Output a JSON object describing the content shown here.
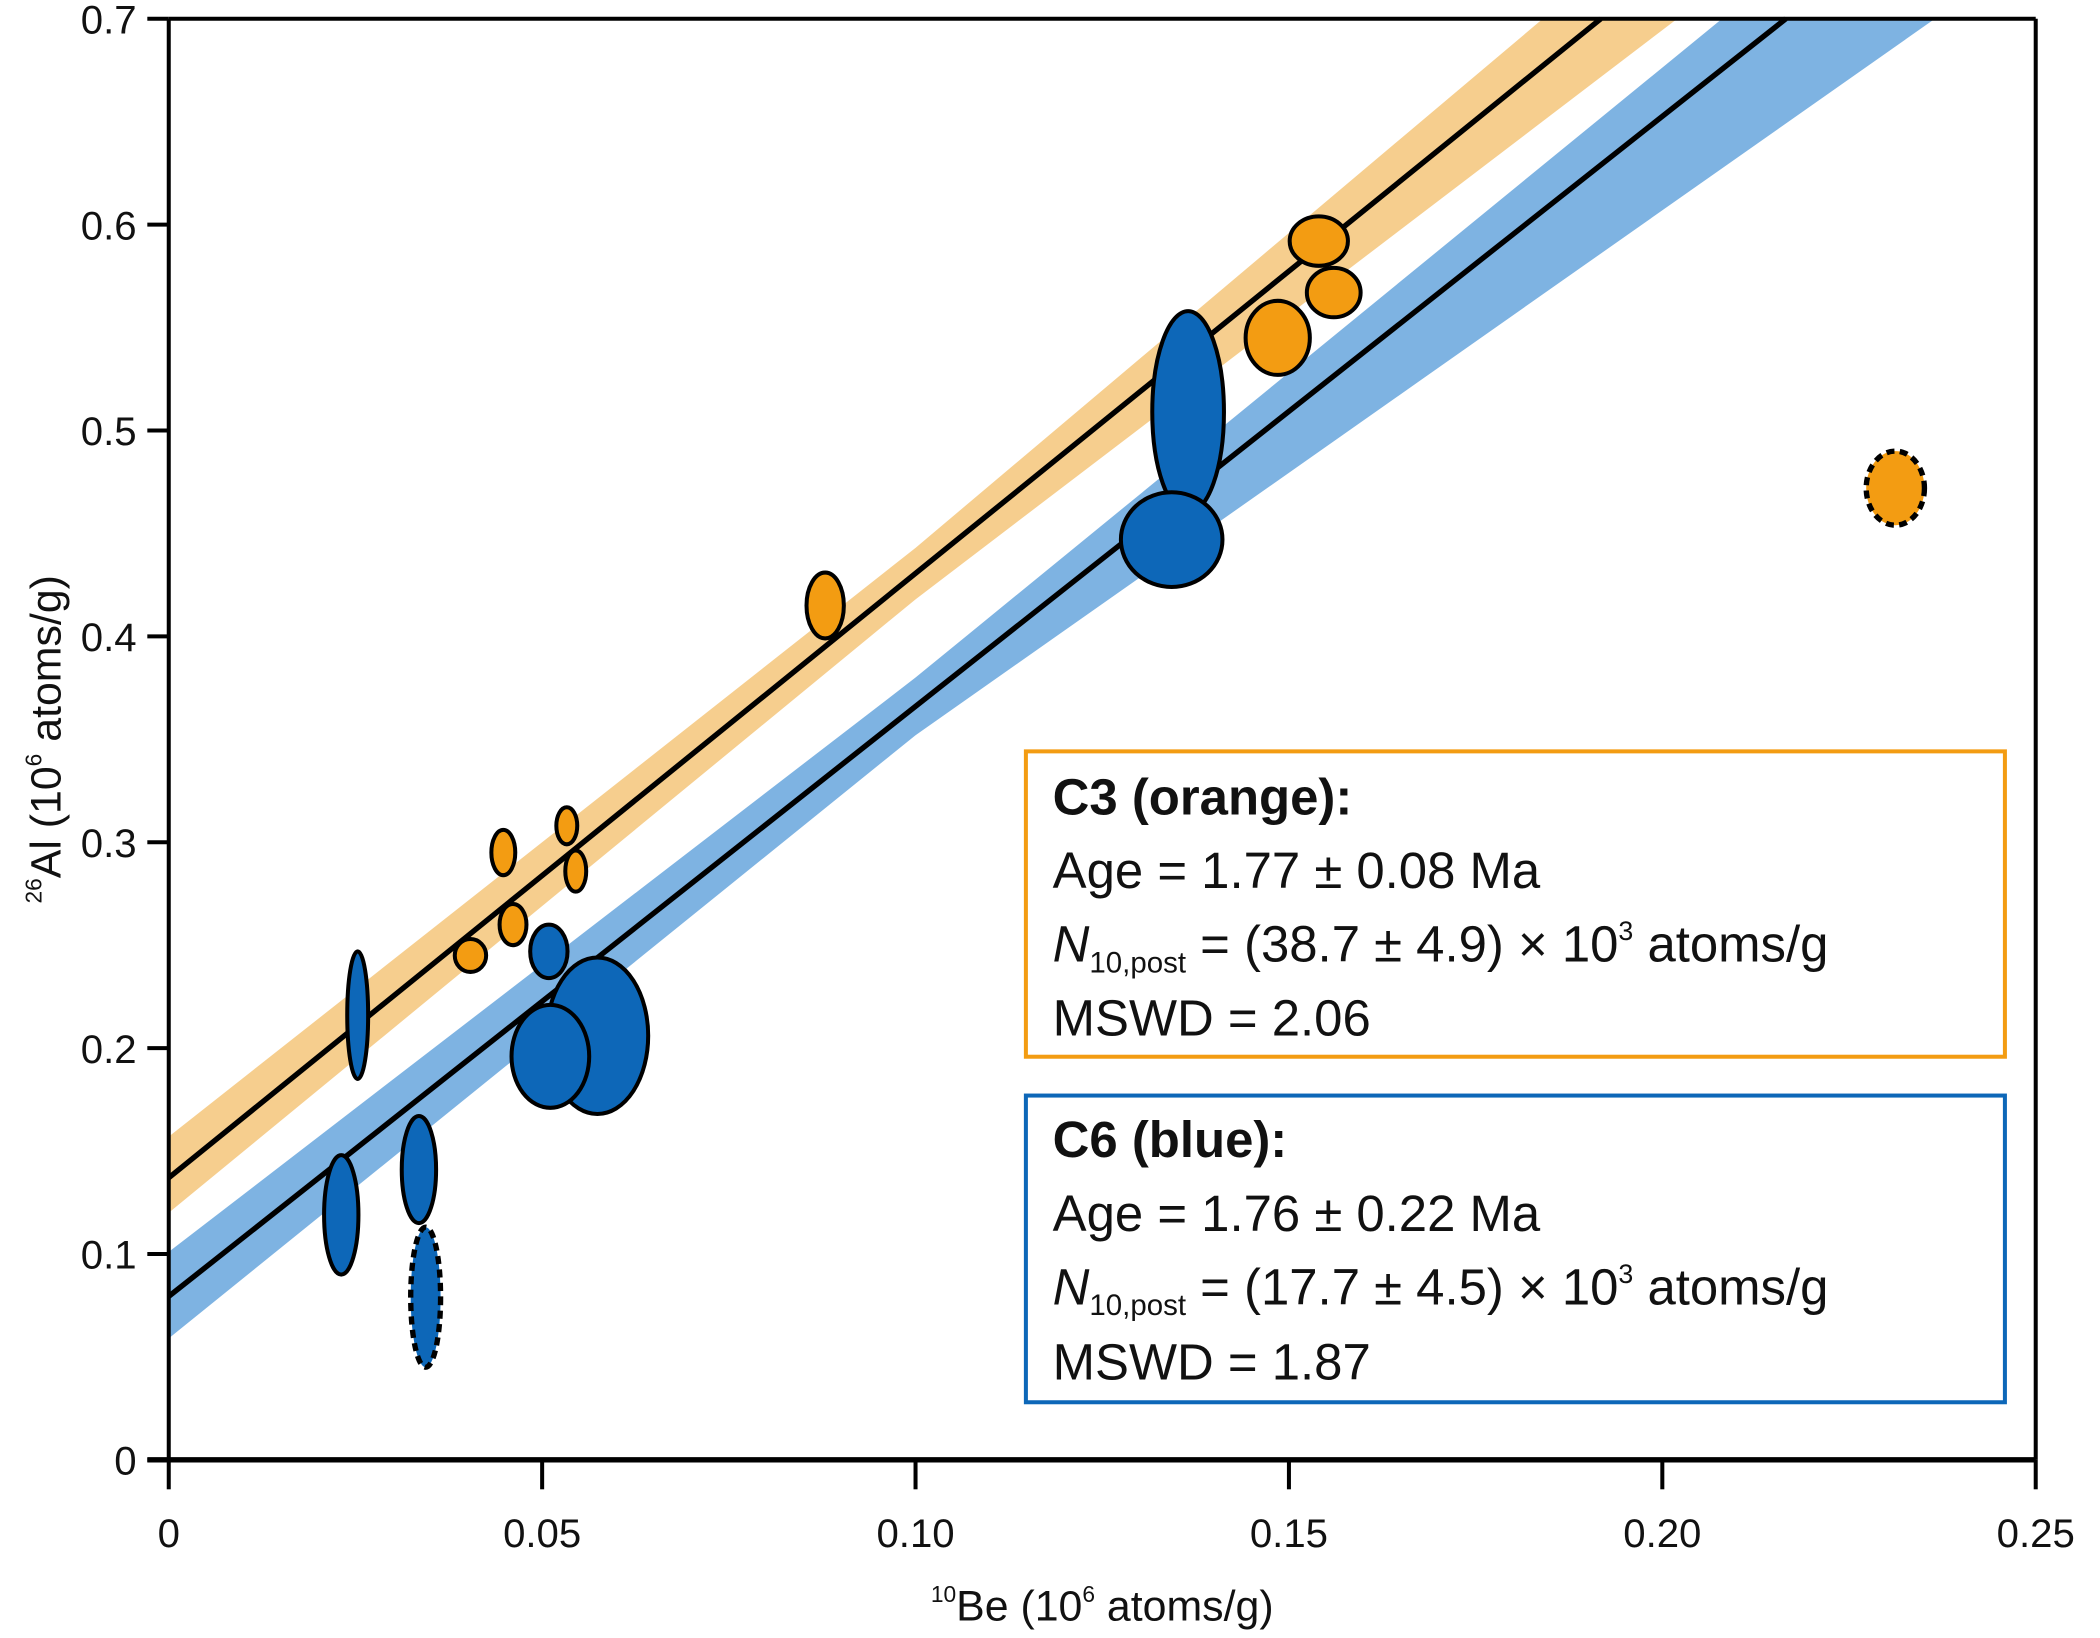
{
  "chart_data": {
    "type": "scatter",
    "xlabel": {
      "sup": "10",
      "main": "Be (10",
      "sup2": "6",
      "rest": " atoms/g)"
    },
    "ylabel": {
      "sup": "26",
      "main": "Al (10",
      "sup2": "6",
      "rest": " atoms/g)"
    },
    "xlim": [
      0,
      0.25
    ],
    "ylim": [
      0,
      0.7
    ],
    "xticks": [
      0,
      0.05,
      0.1,
      0.15,
      0.2,
      0.25
    ],
    "xtick_labels": [
      "0",
      "0.05",
      "0.10",
      "0.15",
      "0.20",
      "0.25"
    ],
    "yticks": [
      0,
      0.1,
      0.2,
      0.3,
      0.4,
      0.5,
      0.6,
      0.7
    ],
    "ytick_labels": [
      "0",
      "0.1",
      "0.2",
      "0.3",
      "0.4",
      "0.5",
      "0.6",
      "0.7"
    ],
    "colors": {
      "orange": "#f39c12",
      "orange_band": "#f5c57a",
      "blue": "#0d67b8",
      "blue_band": "#7eb3e2",
      "overlap": "#d4a864"
    },
    "series": [
      {
        "name": "C3 (orange)",
        "color": "#f39c12",
        "fit": {
          "intercept": 0.137,
          "slope": 2.936
        },
        "band_upper": [
          [
            0,
            0.157
          ],
          [
            0.1,
            0.443
          ],
          [
            0.184,
            0.7
          ]
        ],
        "band_lower": [
          [
            0,
            0.12
          ],
          [
            0.1,
            0.418
          ],
          [
            0.202,
            0.7
          ]
        ],
        "points": [
          {
            "x": 0.0448,
            "y": 0.295,
            "sx": 0.0016,
            "sy": 0.011
          },
          {
            "x": 0.0533,
            "y": 0.308,
            "sx": 0.0014,
            "sy": 0.009
          },
          {
            "x": 0.0545,
            "y": 0.286,
            "sx": 0.0014,
            "sy": 0.01
          },
          {
            "x": 0.0461,
            "y": 0.26,
            "sx": 0.0018,
            "sy": 0.01
          },
          {
            "x": 0.0404,
            "y": 0.245,
            "sx": 0.0021,
            "sy": 0.008
          },
          {
            "x": 0.0879,
            "y": 0.415,
            "sx": 0.0025,
            "sy": 0.016
          },
          {
            "x": 0.1485,
            "y": 0.545,
            "sx": 0.0043,
            "sy": 0.018
          },
          {
            "x": 0.154,
            "y": 0.592,
            "sx": 0.0039,
            "sy": 0.012
          },
          {
            "x": 0.156,
            "y": 0.567,
            "sx": 0.0036,
            "sy": 0.012
          },
          {
            "x": 0.2312,
            "y": 0.472,
            "sx": 0.0039,
            "sy": 0.018,
            "outlier": true
          }
        ]
      },
      {
        "name": "C6 (blue)",
        "color": "#0d67b8",
        "fit": {
          "intercept": 0.0794,
          "slope": 2.866
        },
        "band_upper": [
          [
            0,
            0.101
          ],
          [
            0.1,
            0.38
          ],
          [
            0.208,
            0.7
          ]
        ],
        "band_lower": [
          [
            0,
            0.059
          ],
          [
            0.1,
            0.352
          ],
          [
            0.2365,
            0.7
          ]
        ],
        "points": [
          {
            "x": 0.0253,
            "y": 0.216,
            "sx": 0.0014,
            "sy": 0.031
          },
          {
            "x": 0.0231,
            "y": 0.119,
            "sx": 0.0023,
            "sy": 0.029
          },
          {
            "x": 0.0335,
            "y": 0.141,
            "sx": 0.0023,
            "sy": 0.026
          },
          {
            "x": 0.0344,
            "y": 0.079,
            "sx": 0.002,
            "sy": 0.034,
            "outlier": true
          },
          {
            "x": 0.0509,
            "y": 0.247,
            "sx": 0.0025,
            "sy": 0.013
          },
          {
            "x": 0.0574,
            "y": 0.206,
            "sx": 0.0068,
            "sy": 0.038
          },
          {
            "x": 0.0511,
            "y": 0.196,
            "sx": 0.0052,
            "sy": 0.025
          },
          {
            "x": 0.1365,
            "y": 0.509,
            "sx": 0.0048,
            "sy": 0.049
          },
          {
            "x": 0.1343,
            "y": 0.447,
            "sx": 0.0068,
            "sy": 0.023
          }
        ]
      }
    ],
    "legend": [
      {
        "title": "C3 (orange):",
        "age": "Age = 1.77 ± 0.08 Ma",
        "n_label": "N",
        "n_sub": "10,post",
        "n_value": " = (38.7 ± 4.9) × 10",
        "n_exp": "3",
        "n_unit": " atoms/g",
        "mswd": "MSWD = 2.06",
        "color": "#f39c12"
      },
      {
        "title": "C6 (blue):",
        "age": "Age = 1.76 ± 0.22 Ma",
        "n_label": "N",
        "n_sub": "10,post",
        "n_value": " = (17.7 ± 4.5) × 10",
        "n_exp": "3",
        "n_unit": " atoms/g",
        "mswd": "MSWD = 1.87",
        "color": "#0d67b8"
      }
    ]
  }
}
